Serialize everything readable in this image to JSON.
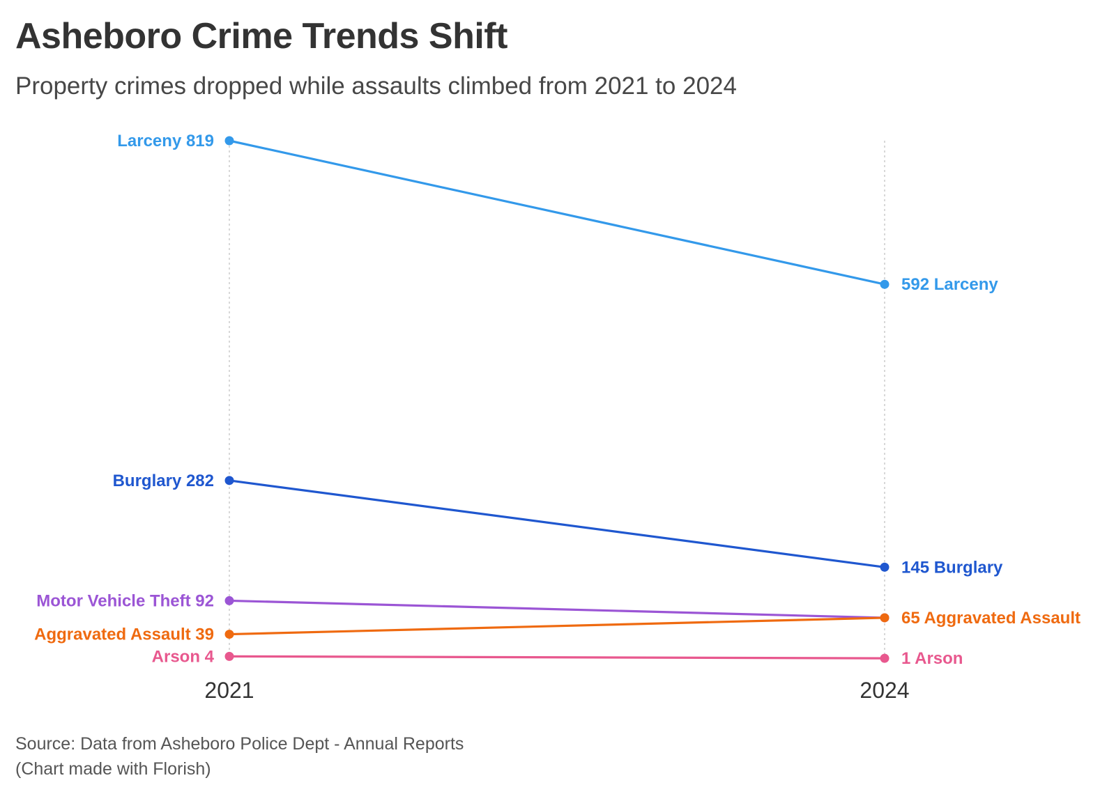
{
  "header": {
    "title": "Asheboro Crime Trends Shift",
    "subtitle": "Property crimes dropped while assaults climbed from 2021 to 2024"
  },
  "chart_data": {
    "type": "line",
    "x": [
      "2021",
      "2024"
    ],
    "series": [
      {
        "name": "Larceny",
        "values": [
          819,
          592
        ],
        "color": "#3399ea"
      },
      {
        "name": "Burglary",
        "values": [
          282,
          145
        ],
        "color": "#1f57cf"
      },
      {
        "name": "Motor Vehicle Theft",
        "values": [
          92,
          65
        ],
        "color": "#9b55d5"
      },
      {
        "name": "Aggravated Assault",
        "values": [
          39,
          65
        ],
        "color": "#ef6a10"
      },
      {
        "name": "Arson",
        "values": [
          4,
          1
        ],
        "color": "#e8588e"
      }
    ],
    "end_labels": [
      "592 Larceny",
      "145 Burglary",
      "65 Aggravated Assault",
      "1 Arson"
    ],
    "start_labels": [
      "Larceny 819",
      "Burglary 282",
      "Motor Vehicle Theft 92",
      "Aggravated Assault 39",
      "Arson 4"
    ],
    "ylim": [
      0,
      819
    ],
    "grid": "vertical dotted guides at each year"
  },
  "footer": {
    "source": "Source: Data from Asheboro Police Dept - Annual Reports",
    "credit": "(Chart made with Florish)"
  }
}
